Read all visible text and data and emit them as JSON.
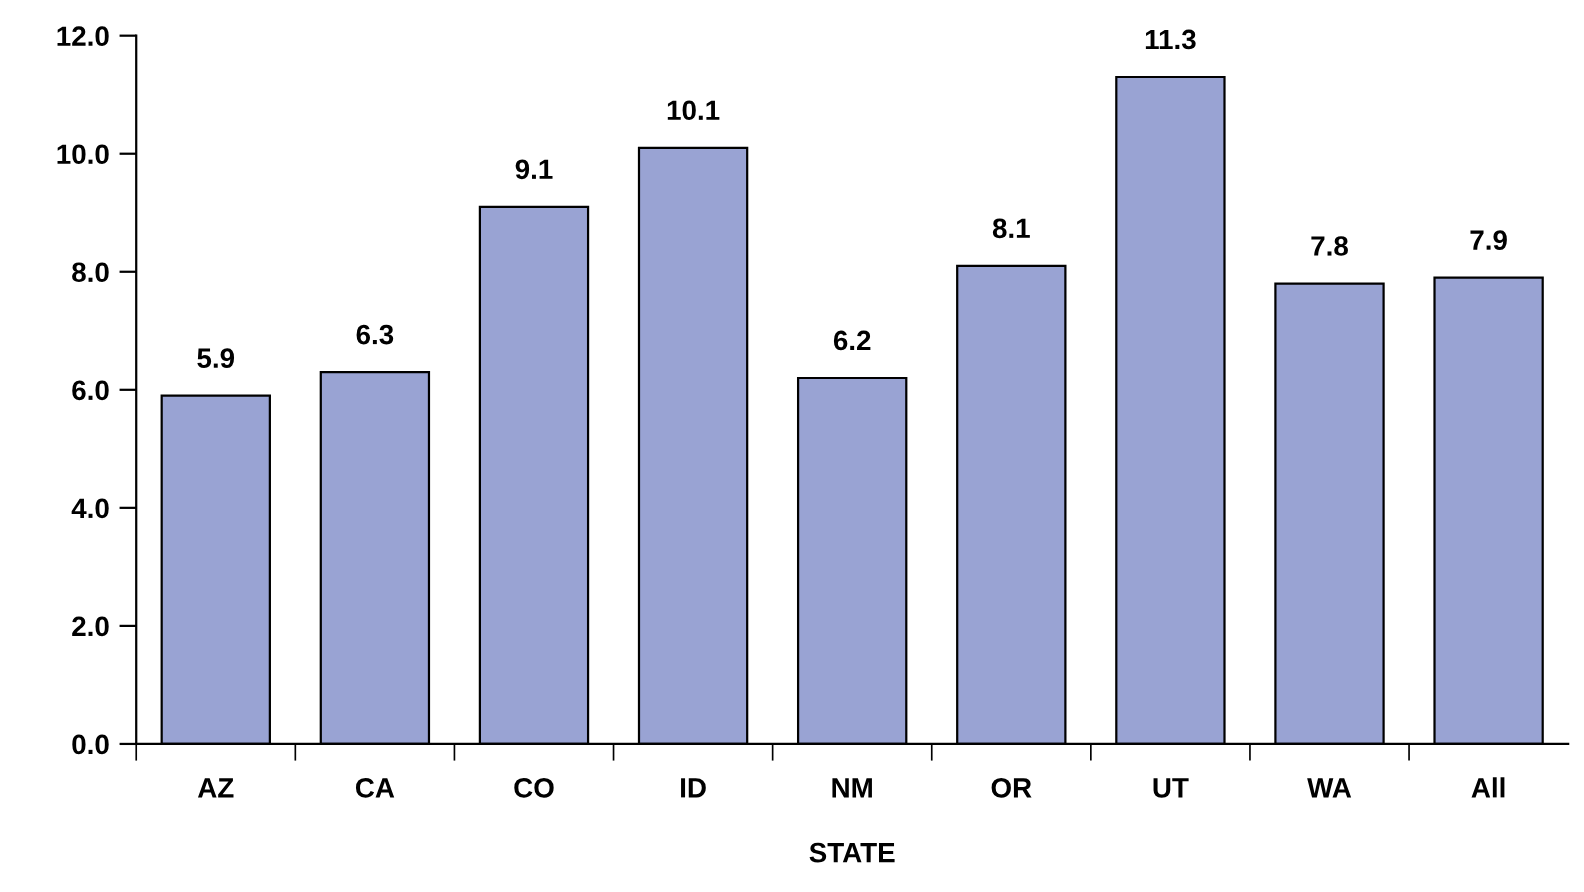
{
  "chart_data": {
    "type": "bar",
    "xlabel": "STATE",
    "categories": [
      "AZ",
      "CA",
      "CO",
      "ID",
      "NM",
      "OR",
      "UT",
      "WA",
      "All"
    ],
    "values": [
      5.9,
      6.3,
      9.1,
      10.1,
      6.2,
      8.1,
      11.3,
      7.8,
      7.9
    ],
    "color": "#99a3d3",
    "ylim": [
      0,
      12
    ],
    "yticks": [
      {
        "value": 0,
        "label": "0.0"
      },
      {
        "value": 2,
        "label": "2.0"
      },
      {
        "value": 4,
        "label": "4.0"
      },
      {
        "value": 6,
        "label": "6.0"
      },
      {
        "value": 8,
        "label": "8.0"
      },
      {
        "value": 10,
        "label": "10.0"
      },
      {
        "value": 12,
        "label": "12.0"
      }
    ],
    "data_labels": true,
    "grid": false,
    "legend": false
  }
}
